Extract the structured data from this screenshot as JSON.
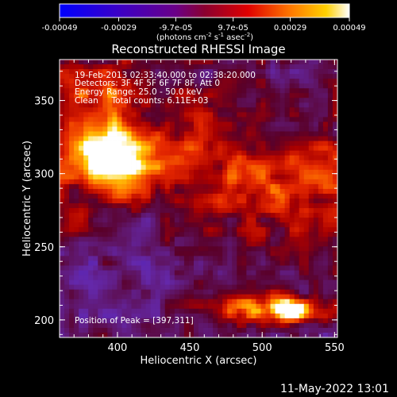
{
  "footer": {
    "timestamp": "11-May-2022 13:01"
  },
  "colorbar": {
    "ticks": [
      "-0.00049",
      "-0.00029",
      "-9.7e-05",
      "9.7e-05",
      "0.00029",
      "0.00049"
    ],
    "tick_values": [
      -0.00049,
      -0.00029,
      -9.7e-05,
      9.7e-05,
      0.00029,
      0.00049
    ],
    "range": [
      -0.00049,
      0.00049
    ],
    "units_line": "(photons cm",
    "units_exp1": "-2",
    "units_mid": " s",
    "units_exp2": "-1",
    "units_mid2": " asec",
    "units_exp3": "-2",
    "units_end": ")"
  },
  "chart_data": {
    "type": "heatmap",
    "title": "Reconstructed RHESSI Image",
    "xlabel": "Heliocentric X (arcsec)",
    "ylabel": "Heliocentric Y (arcsec)",
    "xlim": [
      360,
      552
    ],
    "ylim": [
      188,
      378
    ],
    "xticks": [
      400,
      450,
      500,
      550
    ],
    "yticks": [
      200,
      250,
      300,
      350
    ],
    "annotations": [
      "19-Feb-2013 02:33:40.000 to 02:38:20.000",
      "Detectors: 3F 4F 5F 6F 7F 8F, Att 0",
      "Energy Range: 25.0 - 50.0 keV",
      "Clean     Total counts: 6.11E+03"
    ],
    "peak_label": "Position of Peak = [397,311]",
    "peak_position": [
      397,
      311
    ],
    "secondary_peak_position": [
      521,
      206
    ],
    "colormap": "rainbow/hot diverging (blue-purple-red-orange-yellow-white)"
  }
}
